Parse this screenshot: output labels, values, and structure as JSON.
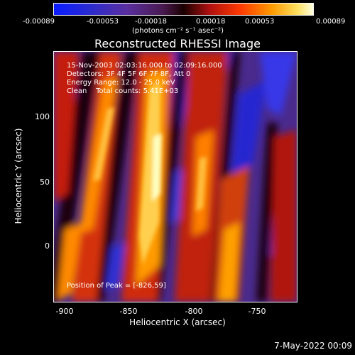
{
  "colorbar": {
    "ticks": [
      "-0.00089",
      "-0.00053",
      "-0.00018",
      "0.00018",
      "0.00053",
      "0.00089"
    ],
    "units": "(photons cm⁻² s⁻¹ asec⁻²)"
  },
  "title": "Reconstructed RHESSI Image",
  "annotations": {
    "line1": "15-Nov-2003 02:03:16.000 to 02:09:16.000",
    "line2": "Detectors: 3F 4F 5F 6F 7F 8F, Att 0",
    "line3": "Energy Range: 12.0 - 25.0 keV",
    "line4": "Clean    Total counts: 5.41E+03",
    "peak": "Position of Peak = [-826,59]"
  },
  "axes": {
    "xlabel": "Heliocentric X (arcsec)",
    "ylabel": "Heliocentric Y (arcsec)",
    "xticks": [
      "-900",
      "-850",
      "-800",
      "-750"
    ],
    "yticks": [
      "100",
      "50",
      "0"
    ]
  },
  "footer": "7-May-2022 00:09"
}
